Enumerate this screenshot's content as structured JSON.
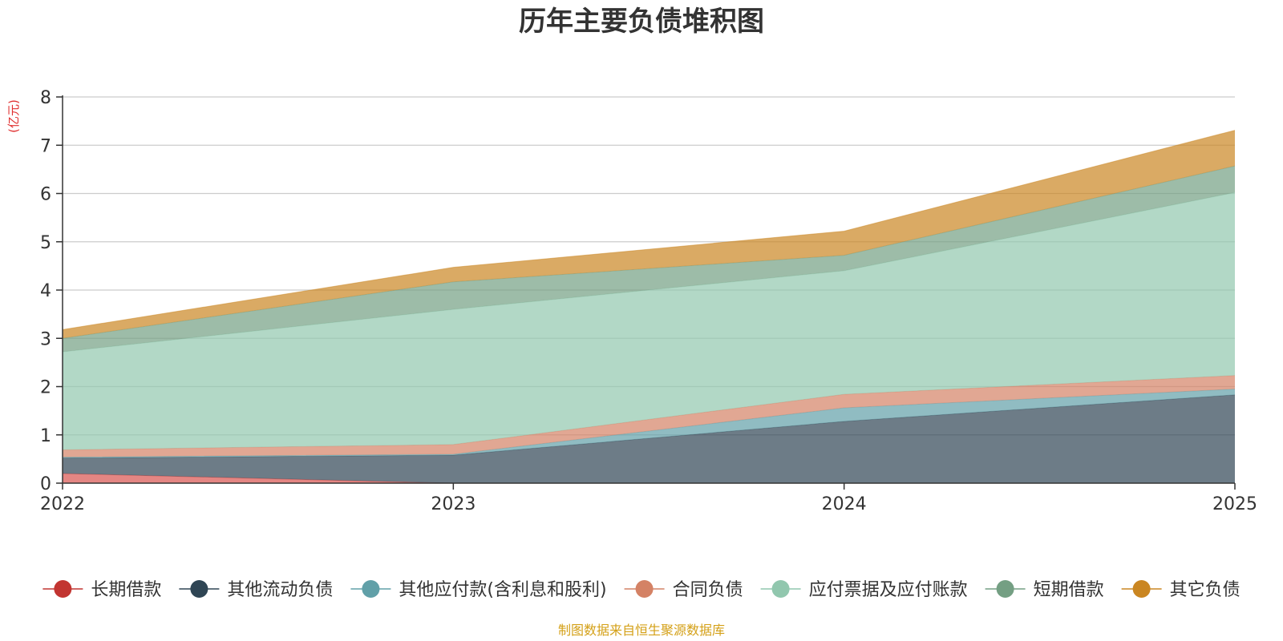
{
  "chart_data": {
    "type": "area",
    "title": "历年主要负债堆积图",
    "unit_label": "(亿元)",
    "x": [
      "2022",
      "2023",
      "2024",
      "2025"
    ],
    "ylim": [
      0,
      8
    ],
    "y_ticks": [
      "0",
      "1",
      "2",
      "3",
      "4",
      "5",
      "6",
      "7",
      "8"
    ],
    "grid": true,
    "stacked": true,
    "legend_position": "bottom",
    "series": [
      {
        "name": "长期借款",
        "color": "#c23531",
        "fill": "#d9534f",
        "values": [
          0.2,
          0.0,
          0.0,
          0.0
        ]
      },
      {
        "name": "其他流动负债",
        "color": "#2f4554",
        "fill": "#2f4554",
        "values": [
          0.32,
          0.58,
          1.28,
          1.83
        ]
      },
      {
        "name": "其他应付款(含利息和股利)",
        "color": "#61a0a8",
        "fill": "#61a0a8",
        "values": [
          0.02,
          0.02,
          0.28,
          0.12
        ]
      },
      {
        "name": "合同负债",
        "color": "#d48265",
        "fill": "#d48265",
        "values": [
          0.15,
          0.2,
          0.28,
          0.28
        ]
      },
      {
        "name": "应付票据及应付账款",
        "color": "#91c7ae",
        "fill": "#91c7ae",
        "values": [
          2.03,
          2.8,
          2.56,
          3.79
        ]
      },
      {
        "name": "短期借款",
        "color": "#749f83",
        "fill": "#749f83",
        "values": [
          0.28,
          0.57,
          0.32,
          0.55
        ]
      },
      {
        "name": "其它负债",
        "color": "#ca8622",
        "fill": "#ca8622",
        "values": [
          0.18,
          0.3,
          0.5,
          0.74
        ]
      }
    ],
    "source": "制图数据来自恒生聚源数据库"
  }
}
